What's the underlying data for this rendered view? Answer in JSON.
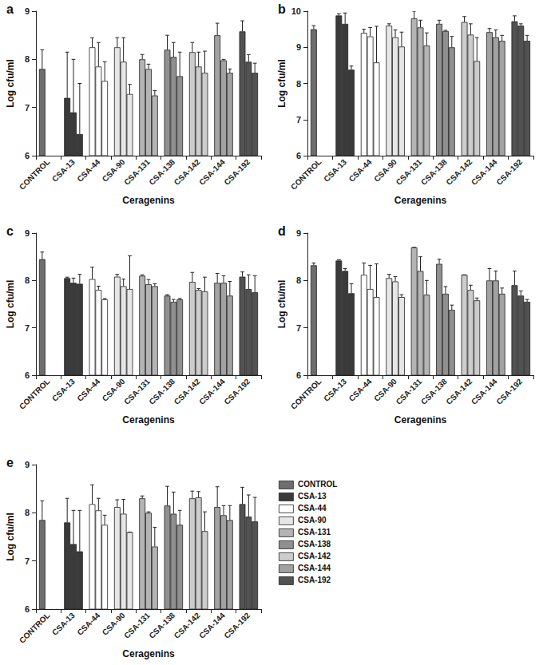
{
  "chart_data": [
    {
      "type": "bar",
      "title": "a",
      "x_label": "Ceragenins",
      "y_label": "Log cfu/ml",
      "categories": [
        "CONTROL",
        "CSA-13",
        "CSA-44",
        "CSA-90",
        "CSA-131",
        "CSA-138",
        "CSA-142",
        "CSA-144",
        "CSA-192"
      ],
      "colors": [
        "#6e6e6e",
        "#3a3a3a",
        "#ffffff",
        "#e6e6e6",
        "#b4b4b4",
        "#909090",
        "#cccccc",
        "#a2a2a2",
        "#525252"
      ],
      "series": [
        {
          "values": [
            7.8,
            7.2,
            8.25,
            8.25,
            8.0,
            8.2,
            8.15,
            8.5,
            8.58
          ],
          "errors": [
            0.4,
            0.95,
            0.2,
            0.2,
            0.1,
            0.3,
            0.2,
            0.25,
            0.22
          ]
        },
        {
          "values": [
            null,
            6.9,
            7.85,
            7.95,
            7.8,
            8.05,
            7.85,
            7.98,
            7.95
          ],
          "errors": [
            null,
            1.1,
            0.5,
            0.5,
            0.1,
            0.3,
            0.3,
            0.02,
            0.15
          ]
        },
        {
          "values": [
            null,
            6.45,
            7.55,
            7.28,
            7.25,
            7.65,
            7.72,
            7.72,
            7.72
          ],
          "errors": [
            null,
            1.05,
            0.4,
            0.2,
            0.1,
            0.5,
            0.45,
            0.08,
            0.2
          ]
        }
      ],
      "ylim": [
        6,
        9
      ],
      "yticks": [
        6,
        7,
        8,
        9
      ],
      "grid": false
    },
    {
      "type": "bar",
      "title": "b",
      "x_label": "Ceragenins",
      "y_label": "Log cfu/ml",
      "categories": [
        "CONTROL",
        "CSA-13",
        "CSA-44",
        "CSA-90",
        "CSA-131",
        "CSA-138",
        "CSA-142",
        "CSA-144",
        "CSA-192"
      ],
      "colors": [
        "#6e6e6e",
        "#3a3a3a",
        "#ffffff",
        "#e6e6e6",
        "#b4b4b4",
        "#909090",
        "#cccccc",
        "#a2a2a2",
        "#525252"
      ],
      "series": [
        {
          "values": [
            9.5,
            9.88,
            9.4,
            9.6,
            9.8,
            9.65,
            9.7,
            9.42,
            9.72
          ],
          "errors": [
            0.1,
            0.05,
            0.1,
            0.05,
            0.2,
            0.1,
            0.15,
            0.1,
            0.15
          ]
        },
        {
          "values": [
            null,
            9.65,
            9.3,
            9.28,
            9.55,
            9.45,
            9.35,
            9.28,
            9.6
          ],
          "errors": [
            null,
            0.3,
            0.25,
            0.2,
            0.2,
            0.02,
            0.3,
            0.2,
            0.05
          ]
        },
        {
          "values": [
            null,
            8.38,
            8.58,
            9.02,
            9.05,
            9.0,
            8.62,
            9.18,
            9.18
          ],
          "errors": [
            null,
            0.1,
            1.0,
            0.4,
            0.35,
            0.3,
            0.65,
            0.15,
            0.15
          ]
        }
      ],
      "ylim": [
        6,
        10
      ],
      "yticks": [
        6,
        7,
        8,
        9,
        10
      ],
      "grid": false
    },
    {
      "type": "bar",
      "title": "c",
      "x_label": "Ceragenins",
      "y_label": "Log cfu/ml",
      "categories": [
        "CONTROL",
        "CSA-13",
        "CSA-44",
        "CSA-90",
        "CSA-131",
        "CSA-138",
        "CSA-142",
        "CSA-144",
        "CSA-192"
      ],
      "colors": [
        "#6e6e6e",
        "#3a3a3a",
        "#ffffff",
        "#e6e6e6",
        "#b4b4b4",
        "#909090",
        "#cccccc",
        "#a2a2a2",
        "#525252"
      ],
      "series": [
        {
          "values": [
            8.45,
            8.05,
            8.03,
            8.08,
            8.1,
            7.68,
            7.97,
            7.95,
            8.08
          ],
          "errors": [
            0.15,
            0.02,
            0.25,
            0.05,
            0.02,
            0.02,
            0.2,
            0.2,
            0.1
          ]
        },
        {
          "values": [
            null,
            7.95,
            7.8,
            7.88,
            7.92,
            7.55,
            7.8,
            7.95,
            7.82
          ],
          "errors": [
            null,
            0.1,
            0.08,
            0.15,
            0.1,
            0.05,
            0.03,
            0.15,
            0.3
          ]
        },
        {
          "values": [
            null,
            7.93,
            7.6,
            7.82,
            7.88,
            7.6,
            7.77,
            7.68,
            7.75
          ],
          "errors": [
            null,
            0.2,
            0.02,
            0.7,
            0.05,
            0.02,
            0.3,
            0.3,
            0.35
          ]
        }
      ],
      "ylim": [
        6,
        9
      ],
      "yticks": [
        6,
        7,
        8,
        9
      ],
      "grid": false
    },
    {
      "type": "bar",
      "title": "d",
      "x_label": "Ceragenins",
      "y_label": "Log cfu/ml",
      "categories": [
        "CONTROL",
        "CSA-13",
        "CSA-44",
        "CSA-90",
        "CSA-131",
        "CSA-138",
        "CSA-142",
        "CSA-144",
        "CSA-192"
      ],
      "colors": [
        "#6e6e6e",
        "#3a3a3a",
        "#ffffff",
        "#e6e6e6",
        "#b4b4b4",
        "#909090",
        "#cccccc",
        "#a2a2a2",
        "#525252"
      ],
      "series": [
        {
          "values": [
            8.32,
            8.42,
            8.12,
            8.05,
            8.7,
            8.35,
            8.12,
            8.0,
            7.9
          ],
          "errors": [
            0.05,
            0.02,
            0.25,
            0.08,
            0.0,
            0.1,
            0.0,
            0.25,
            0.3
          ]
        },
        {
          "values": [
            null,
            8.2,
            7.82,
            7.98,
            8.2,
            7.72,
            7.8,
            8.0,
            7.68
          ],
          "errors": [
            null,
            0.05,
            0.5,
            0.1,
            0.3,
            0.15,
            0.1,
            0.2,
            0.1
          ]
        },
        {
          "values": [
            null,
            7.73,
            7.65,
            7.65,
            7.7,
            7.38,
            7.58,
            7.72,
            7.55
          ],
          "errors": [
            null,
            0.2,
            0.7,
            0.05,
            0.3,
            0.1,
            0.05,
            0.12,
            0.05
          ]
        }
      ],
      "ylim": [
        6,
        9
      ],
      "yticks": [
        6,
        7,
        8,
        9
      ],
      "grid": false
    },
    {
      "type": "bar",
      "title": "e",
      "x_label": "Ceragenins",
      "y_label": "Log cfu/ml",
      "categories": [
        "CONTROL",
        "CSA-13",
        "CSA-44",
        "CSA-90",
        "CSA-131",
        "CSA-138",
        "CSA-142",
        "CSA-144",
        "CSA-192"
      ],
      "colors": [
        "#6e6e6e",
        "#3a3a3a",
        "#ffffff",
        "#e6e6e6",
        "#b4b4b4",
        "#909090",
        "#cccccc",
        "#a2a2a2",
        "#525252"
      ],
      "series": [
        {
          "values": [
            7.85,
            7.8,
            8.18,
            8.12,
            8.3,
            8.15,
            8.3,
            8.12,
            8.18
          ],
          "errors": [
            0.4,
            0.5,
            0.4,
            0.15,
            0.05,
            0.4,
            0.15,
            0.42,
            0.35
          ]
        },
        {
          "values": [
            null,
            7.35,
            8.05,
            7.98,
            8.0,
            7.98,
            8.32,
            7.95,
            7.92
          ],
          "errors": [
            null,
            0.7,
            0.25,
            0.3,
            0.02,
            0.45,
            0.12,
            0.2,
            0.45
          ]
        },
        {
          "values": [
            null,
            7.2,
            7.75,
            7.6,
            7.3,
            7.75,
            7.62,
            7.85,
            7.82
          ],
          "errors": [
            null,
            0.85,
            0.2,
            0.0,
            0.4,
            0.3,
            0.4,
            0.3,
            0.5
          ]
        }
      ],
      "ylim": [
        6,
        9
      ],
      "yticks": [
        6,
        7,
        8,
        9
      ],
      "grid": false,
      "legend": "right"
    }
  ]
}
